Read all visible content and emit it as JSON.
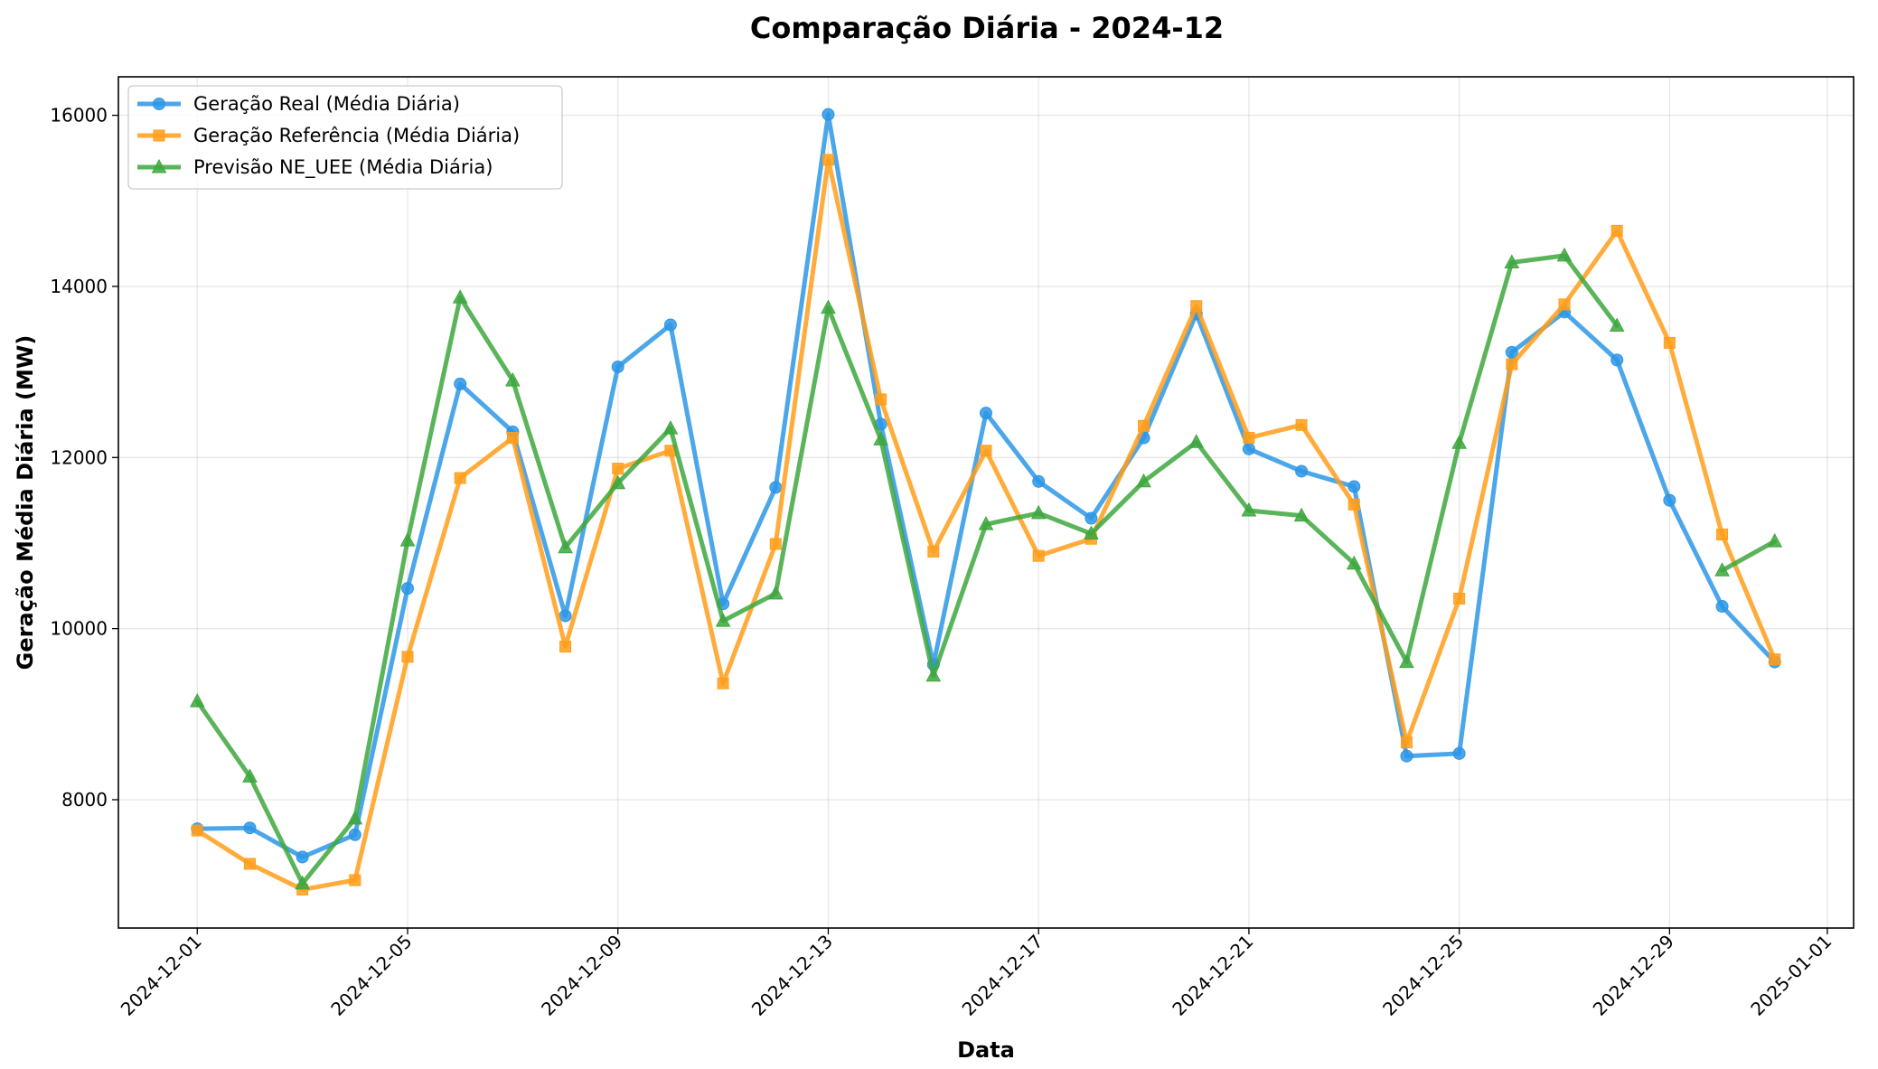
{
  "chart_data": {
    "type": "line",
    "title": "Comparação Diária - 2024-12",
    "xlabel": "Data",
    "ylabel": "Geração Média Diária (MW)",
    "xlim": [
      "2024-11-29T12:00",
      "2025-01-01T12:00"
    ],
    "ylim": [
      6500,
      16450
    ],
    "x_ticks": [
      "2024-12-01",
      "2024-12-05",
      "2024-12-09",
      "2024-12-13",
      "2024-12-17",
      "2024-12-21",
      "2024-12-25",
      "2024-12-29",
      "2025-01-01"
    ],
    "y_ticks": [
      8000,
      10000,
      12000,
      14000,
      16000
    ],
    "grid": true,
    "legend_position": "upper left",
    "series": [
      {
        "name": "Geração Real (Média Diária)",
        "color": "#2d96e6",
        "marker": "circle",
        "x": [
          "2024-12-01",
          "2024-12-02",
          "2024-12-03",
          "2024-12-04",
          "2024-12-05",
          "2024-12-06",
          "2024-12-07",
          "2024-12-08",
          "2024-12-09",
          "2024-12-10",
          "2024-12-11",
          "2024-12-12",
          "2024-12-13",
          "2024-12-14",
          "2024-12-15",
          "2024-12-16",
          "2024-12-17",
          "2024-12-18",
          "2024-12-19",
          "2024-12-20",
          "2024-12-21",
          "2024-12-22",
          "2024-12-23",
          "2024-12-24",
          "2024-12-25",
          "2024-12-26",
          "2024-12-27",
          "2024-12-28",
          "2024-12-29",
          "2024-12-30",
          "2024-12-31"
        ],
        "values": [
          7660,
          7670,
          7330,
          7590,
          10470,
          12860,
          12300,
          10150,
          13060,
          13550,
          10290,
          11650,
          16010,
          12390,
          9580,
          12520,
          11720,
          11290,
          12230,
          13680,
          12100,
          11840,
          11660,
          8510,
          8540,
          13230,
          13700,
          13140,
          11500,
          10260,
          9610
        ]
      },
      {
        "name": "Geração Referência (Média Diária)",
        "color": "#ff9e1a",
        "marker": "square",
        "x": [
          "2024-12-01",
          "2024-12-02",
          "2024-12-03",
          "2024-12-04",
          "2024-12-05",
          "2024-12-06",
          "2024-12-07",
          "2024-12-08",
          "2024-12-09",
          "2024-12-10",
          "2024-12-11",
          "2024-12-12",
          "2024-12-13",
          "2024-12-14",
          "2024-12-15",
          "2024-12-16",
          "2024-12-17",
          "2024-12-18",
          "2024-12-19",
          "2024-12-20",
          "2024-12-21",
          "2024-12-22",
          "2024-12-23",
          "2024-12-24",
          "2024-12-25",
          "2024-12-26",
          "2024-12-27",
          "2024-12-28",
          "2024-12-29",
          "2024-12-30",
          "2024-12-31"
        ],
        "values": [
          7640,
          7250,
          6950,
          7060,
          9670,
          11760,
          12230,
          9790,
          11870,
          12080,
          9360,
          10990,
          15480,
          12680,
          10900,
          12080,
          10850,
          11050,
          12370,
          13770,
          12230,
          12380,
          11450,
          8670,
          10350,
          13090,
          13790,
          14650,
          13340,
          11100,
          9640
        ]
      },
      {
        "name": "Previsão NE_UEE (Média Diária)",
        "color": "#3da73d",
        "marker": "triangle",
        "x": [
          "2024-12-01",
          "2024-12-02",
          "2024-12-03",
          "2024-12-04",
          "2024-12-05",
          "2024-12-06",
          "2024-12-07",
          "2024-12-08",
          "2024-12-09",
          "2024-12-10",
          "2024-12-11",
          "2024-12-12",
          "2024-12-13",
          "2024-12-14",
          "2024-12-15",
          "2024-12-16",
          "2024-12-17",
          "2024-12-18",
          "2024-12-19",
          "2024-12-20",
          "2024-12-21",
          "2024-12-22",
          "2024-12-23",
          "2024-12-24",
          "2024-12-25",
          "2024-12-26",
          "2024-12-27",
          "2024-12-28"
        ],
        "values": [
          9150,
          8270,
          7020,
          7780,
          11030,
          13870,
          12900,
          10950,
          11700,
          12340,
          10090,
          10410,
          13750,
          12210,
          9450,
          11220,
          11350,
          11110,
          11720,
          12180,
          11380,
          11320,
          10760,
          9610,
          12170,
          14280,
          14360,
          13540
        ],
        "x_extra": [
          "2024-12-30",
          "2024-12-31"
        ],
        "values_extra": [
          10680,
          11020
        ]
      }
    ]
  }
}
